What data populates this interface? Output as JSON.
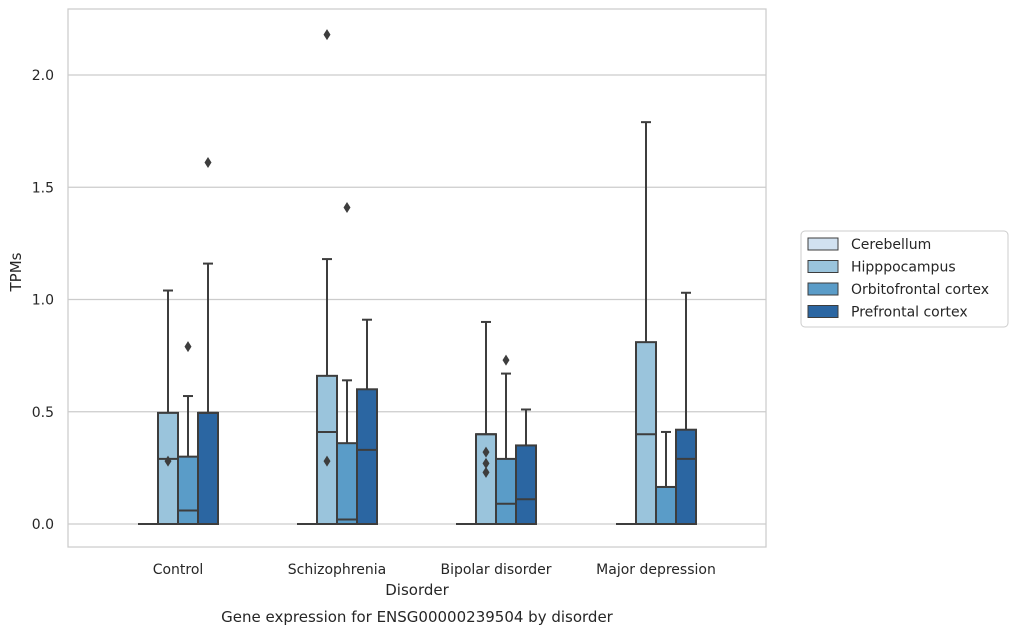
{
  "caption": "Gene expression for ENSG00000239504 by disorder",
  "chart_data": {
    "type": "box",
    "title": "",
    "xlabel": "Disorder",
    "ylabel": "TPMs",
    "categories": [
      "Control",
      "Schizophrenia",
      "Bipolar disorder",
      "Major depression"
    ],
    "yticks": [
      "0.0",
      "0.5",
      "1.0",
      "1.5",
      "2.0"
    ],
    "ylim": [
      -0.1,
      2.3
    ],
    "grid": "horizontal",
    "legend_position": "right",
    "series": [
      {
        "name": "Cerebellum",
        "color": "#d1e1f0",
        "boxes": [
          {
            "q1": 0,
            "median": 0,
            "q3": 0,
            "whisker_low": 0,
            "whisker_high": 0,
            "outliers": []
          },
          {
            "q1": 0,
            "median": 0,
            "q3": 0,
            "whisker_low": 0,
            "whisker_high": 0,
            "outliers": []
          },
          {
            "q1": 0,
            "median": 0,
            "q3": 0,
            "whisker_low": 0,
            "whisker_high": 0,
            "outliers": []
          },
          {
            "q1": 0,
            "median": 0,
            "q3": 0,
            "whisker_low": 0,
            "whisker_high": 0,
            "outliers": []
          }
        ]
      },
      {
        "name": "Hipppocampus",
        "color": "#9ac4dc",
        "boxes": [
          {
            "q1": 0,
            "median": 0.29,
            "q3": 0.495,
            "whisker_low": 0,
            "whisker_high": 1.04,
            "outliers": [
              0.28
            ]
          },
          {
            "q1": 0,
            "median": 0.41,
            "q3": 0.66,
            "whisker_low": 0,
            "whisker_high": 1.18,
            "outliers": [
              0.28,
              2.18
            ]
          },
          {
            "q1": 0,
            "median": 0.4,
            "q3": 0.4,
            "whisker_low": 0,
            "whisker_high": 0.9,
            "outliers": [
              0.23,
              0.27,
              0.32
            ]
          },
          {
            "q1": 0,
            "median": 0.4,
            "q3": 0.81,
            "whisker_low": 0,
            "whisker_high": 1.79,
            "outliers": []
          }
        ]
      },
      {
        "name": "Orbitofrontal cortex",
        "color": "#5a9cc8",
        "boxes": [
          {
            "q1": 0,
            "median": 0.06,
            "q3": 0.3,
            "whisker_low": 0,
            "whisker_high": 0.57,
            "outliers": [
              0.79
            ]
          },
          {
            "q1": 0,
            "median": 0.02,
            "q3": 0.36,
            "whisker_low": 0,
            "whisker_high": 0.64,
            "outliers": [
              1.41
            ]
          },
          {
            "q1": 0,
            "median": 0.09,
            "q3": 0.29,
            "whisker_low": 0,
            "whisker_high": 0.67,
            "outliers": [
              0.73
            ]
          },
          {
            "q1": 0,
            "median": 0.165,
            "q3": 0.165,
            "whisker_low": 0,
            "whisker_high": 0.41,
            "outliers": []
          }
        ]
      },
      {
        "name": "Prefrontal cortex",
        "color": "#2b66a2",
        "boxes": [
          {
            "q1": 0,
            "median": 0.495,
            "q3": 0.495,
            "whisker_low": 0,
            "whisker_high": 1.16,
            "outliers": [
              1.61
            ]
          },
          {
            "q1": 0,
            "median": 0.33,
            "q3": 0.6,
            "whisker_low": 0,
            "whisker_high": 0.91,
            "outliers": []
          },
          {
            "q1": 0,
            "median": 0.11,
            "q3": 0.35,
            "whisker_low": 0,
            "whisker_high": 0.51,
            "outliers": []
          },
          {
            "q1": 0,
            "median": 0.29,
            "q3": 0.42,
            "whisker_low": 0,
            "whisker_high": 1.03,
            "outliers": []
          }
        ]
      }
    ]
  }
}
